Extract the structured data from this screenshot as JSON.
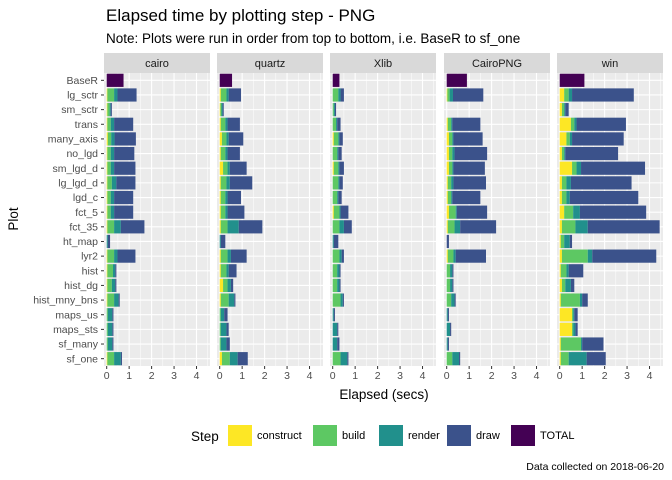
{
  "chart_data": {
    "type": "bar",
    "orientation": "horizontal",
    "stacked": true,
    "title": "Elapsed time by plotting step - PNG",
    "subtitle": "Note: Plots were run in order from top to bottom, i.e. BaseR to sf_one",
    "xlabel": "Elapsed (secs)",
    "ylabel": "Plot",
    "caption": "Data collected on 2018-06-20",
    "xlim": [
      -0.12,
      4.6
    ],
    "xticks": [
      "0",
      "1",
      "2",
      "3",
      "4"
    ],
    "grid": true,
    "legend_position": "bottom",
    "legend_title": "Step",
    "categories": [
      "BaseR",
      "lg_sctr",
      "sm_sctr",
      "trans",
      "many_axis",
      "no_lgd",
      "sm_lgd_d",
      "lg_lgd_d",
      "lgd_c",
      "fct_5",
      "fct_35",
      "ht_map",
      "lyr2",
      "hist",
      "hist_dg",
      "hist_mny_bns",
      "maps_us",
      "maps_sts",
      "sf_many",
      "sf_one"
    ],
    "steps": [
      {
        "name": "construct",
        "color": "#FDE725"
      },
      {
        "name": "build",
        "color": "#5DC863"
      },
      {
        "name": "render",
        "color": "#21908C"
      },
      {
        "name": "draw",
        "color": "#3B528B"
      },
      {
        "name": "TOTAL",
        "color": "#440154"
      }
    ],
    "panels": [
      {
        "name": "cairo",
        "total": [
          0.75,
          null,
          null,
          null,
          null,
          null,
          null,
          null,
          null,
          null,
          null,
          null,
          null,
          null,
          null,
          null,
          null,
          null,
          null,
          null
        ],
        "construct": [
          0,
          0.03,
          0.03,
          0.03,
          0.05,
          0.03,
          0.03,
          0.03,
          0.03,
          0.03,
          0.03,
          0,
          0.03,
          0.03,
          0.03,
          0.03,
          0,
          0,
          0,
          0.03
        ],
        "build": [
          0,
          0.3,
          0.1,
          0.15,
          0.15,
          0.15,
          0.15,
          0.2,
          0.15,
          0.15,
          0.3,
          0,
          0.3,
          0.25,
          0.2,
          0.3,
          0.05,
          0.05,
          0.05,
          0.3
        ],
        "render": [
          0,
          0.15,
          0.05,
          0.15,
          0.15,
          0.15,
          0.15,
          0.2,
          0.15,
          0.15,
          0.3,
          0.05,
          0.15,
          0.1,
          0.15,
          0.2,
          0.2,
          0.2,
          0.2,
          0.3
        ],
        "draw": [
          0,
          0.85,
          0.05,
          0.85,
          0.95,
          0.9,
          0.95,
          0.85,
          0.85,
          0.85,
          1.05,
          0.1,
          0.8,
          0.05,
          0.05,
          0.05,
          0.05,
          0.05,
          0.05,
          0.05
        ]
      },
      {
        "name": "quartz",
        "total": [
          0.55,
          null,
          null,
          null,
          null,
          null,
          null,
          null,
          null,
          null,
          null,
          null,
          null,
          null,
          null,
          null,
          null,
          null,
          null,
          null
        ],
        "construct": [
          0,
          0.05,
          0.03,
          0.05,
          0.1,
          0.05,
          0.15,
          0.05,
          0.05,
          0.05,
          0.05,
          0,
          0.05,
          0.05,
          0.15,
          0.05,
          0,
          0,
          0,
          0.1
        ],
        "build": [
          0,
          0.25,
          0.05,
          0.2,
          0.2,
          0.2,
          0.2,
          0.25,
          0.2,
          0.2,
          0.3,
          0,
          0.3,
          0.25,
          0.2,
          0.35,
          0.05,
          0.05,
          0.05,
          0.35
        ],
        "render": [
          0,
          0.1,
          0.05,
          0.1,
          0.1,
          0.1,
          0.1,
          0.15,
          0.1,
          0.1,
          0.5,
          0.05,
          0.15,
          0.1,
          0.15,
          0.25,
          0.15,
          0.25,
          0.25,
          0.35
        ],
        "draw": [
          0,
          0.55,
          0.05,
          0.55,
          0.65,
          0.55,
          0.75,
          1.0,
          0.6,
          0.75,
          1.05,
          0.2,
          0.7,
          0.35,
          0.1,
          0.05,
          0.15,
          0.1,
          0.15,
          0.45
        ]
      },
      {
        "name": "Xlib",
        "total": [
          0.3,
          null,
          null,
          null,
          null,
          null,
          null,
          null,
          null,
          null,
          null,
          null,
          null,
          null,
          null,
          null,
          null,
          null,
          null,
          null
        ],
        "construct": [
          0,
          0,
          0,
          0,
          0.05,
          0,
          0.05,
          0,
          0,
          0.05,
          0,
          0,
          0,
          0,
          0,
          0,
          0,
          0,
          0,
          0
        ],
        "build": [
          0,
          0.25,
          0.05,
          0.15,
          0.2,
          0.2,
          0.2,
          0.25,
          0.2,
          0.25,
          0.3,
          0,
          0.3,
          0.2,
          0.2,
          0.35,
          0,
          0,
          0,
          0.35
        ],
        "render": [
          0,
          0.1,
          0.05,
          0.05,
          0.05,
          0.05,
          0.05,
          0.05,
          0.05,
          0.05,
          0.2,
          0.05,
          0.1,
          0.1,
          0.1,
          0.1,
          0.05,
          0.2,
          0.2,
          0.3
        ],
        "draw": [
          0,
          0.15,
          0.05,
          0.15,
          0.15,
          0.15,
          0.2,
          0.15,
          0.15,
          0.35,
          0.35,
          0.2,
          0.1,
          0.05,
          0.05,
          0.05,
          0.05,
          0.05,
          0.1,
          0.05
        ]
      },
      {
        "name": "CairoPNG",
        "total": [
          0.9,
          null,
          null,
          null,
          null,
          null,
          null,
          null,
          null,
          null,
          null,
          null,
          null,
          null,
          null,
          null,
          null,
          null,
          null,
          null
        ],
        "construct": [
          0,
          0.03,
          0,
          0.05,
          0.1,
          0.1,
          0.1,
          0.05,
          0.05,
          0.1,
          0.05,
          0,
          0.05,
          0,
          0,
          0,
          0,
          0,
          0,
          0
        ],
        "build": [
          0,
          0.1,
          0,
          0.15,
          0.15,
          0.15,
          0.15,
          0.15,
          0.15,
          0.3,
          0.3,
          0,
          0.25,
          0.15,
          0.15,
          0.2,
          0,
          0,
          0,
          0.25
        ],
        "render": [
          0,
          0.15,
          0,
          0.05,
          0.05,
          0.1,
          0.05,
          0.1,
          0.05,
          0.05,
          0.25,
          0,
          0.1,
          0.1,
          0.1,
          0.15,
          0.05,
          0.15,
          0.05,
          0.3
        ],
        "draw": [
          0,
          1.35,
          0,
          1.25,
          1.3,
          1.45,
          1.4,
          1.45,
          1.25,
          1.35,
          1.6,
          0.1,
          1.35,
          0.05,
          0.05,
          0.05,
          0.05,
          0.05,
          0.05,
          0.05
        ]
      },
      {
        "name": "win",
        "total": [
          1.1,
          null,
          null,
          null,
          null,
          null,
          null,
          null,
          null,
          null,
          null,
          null,
          null,
          null,
          null,
          null,
          null,
          null,
          null,
          null
        ],
        "construct": [
          0,
          0.2,
          0.1,
          0.5,
          0.3,
          0.1,
          0.55,
          0.1,
          0.1,
          0.2,
          0.1,
          0.05,
          0.1,
          0.05,
          0.1,
          0.05,
          0.55,
          0.55,
          0.05,
          0.05
        ],
        "build": [
          0,
          0.2,
          0.1,
          0.15,
          0.15,
          0.1,
          0.2,
          0.2,
          0.2,
          0.4,
          0.6,
          0.15,
          1.15,
          0.25,
          0.15,
          0.85,
          0.05,
          0.05,
          0.9,
          0.35
        ],
        "render": [
          0,
          0.15,
          0.05,
          0.1,
          0.1,
          0.05,
          0.2,
          0.2,
          0.15,
          0.3,
          0.55,
          0.25,
          0.2,
          0.1,
          0.25,
          0.1,
          0.05,
          0.1,
          0.05,
          0.8
        ],
        "draw": [
          0,
          2.75,
          0.15,
          2.2,
          2.3,
          2.35,
          2.85,
          2.7,
          3.05,
          2.95,
          3.2,
          0.1,
          2.85,
          0.65,
          0.15,
          0.25,
          0.15,
          0.1,
          0.95,
          0.85
        ]
      }
    ]
  }
}
